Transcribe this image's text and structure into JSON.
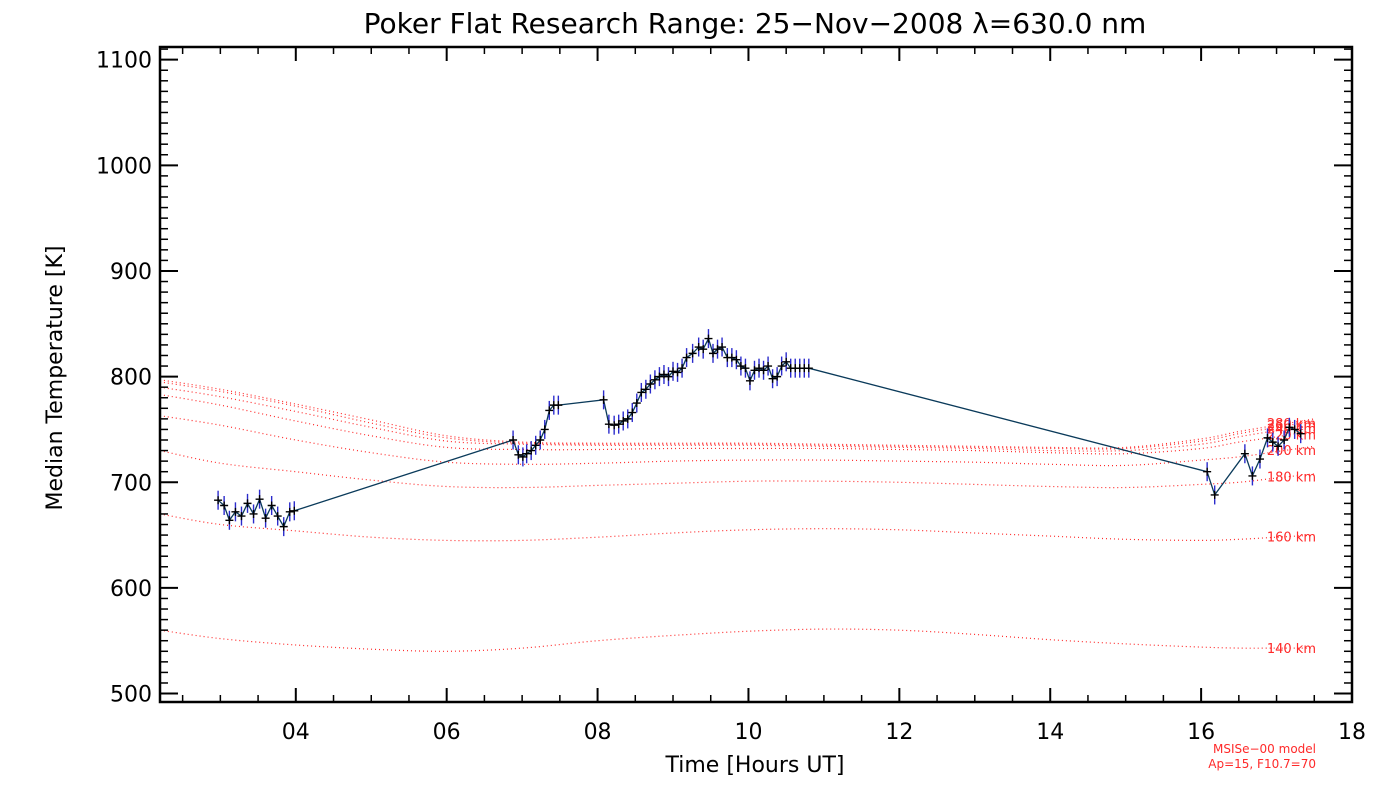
{
  "chart_data": {
    "type": "line",
    "title": "Poker Flat Research Range: 25−Nov−2008 λ=630.0 nm",
    "xlabel": "Time [Hours UT]",
    "ylabel": "Median Temperature [K]",
    "xlim": [
      2.2,
      18.0
    ],
    "ylim": [
      492,
      1112
    ],
    "xticks": [
      4,
      6,
      8,
      10,
      12,
      14,
      16,
      18
    ],
    "xtick_labels": [
      "04",
      "06",
      "08",
      "10",
      "12",
      "14",
      "16",
      "18"
    ],
    "yticks": [
      500,
      600,
      700,
      800,
      900,
      1000,
      1100
    ],
    "ytick_labels": [
      "500",
      "600",
      "700",
      "800",
      "900",
      "1000",
      "1100"
    ],
    "grid": false,
    "colors": {
      "measurement_line": "#0a3a5a",
      "errorbar": "#2b2bcc",
      "marker": "#000000",
      "model": "#ff2a2a",
      "axes": "#000000"
    },
    "measurements": {
      "x": [
        2.97,
        3.05,
        3.12,
        3.2,
        3.28,
        3.36,
        3.44,
        3.52,
        3.6,
        3.68,
        3.76,
        3.84,
        3.92,
        3.98,
        6.88,
        6.95,
        7.01,
        7.06,
        7.12,
        7.18,
        7.24,
        7.3,
        7.36,
        7.42,
        7.48,
        8.08,
        8.15,
        8.22,
        8.28,
        8.34,
        8.4,
        8.46,
        8.52,
        8.58,
        8.64,
        8.7,
        8.76,
        8.82,
        8.88,
        8.94,
        9.0,
        9.06,
        9.12,
        9.18,
        9.26,
        9.34,
        9.4,
        9.47,
        9.53,
        9.59,
        9.65,
        9.72,
        9.78,
        9.84,
        9.9,
        9.96,
        10.02,
        10.08,
        10.14,
        10.2,
        10.26,
        10.32,
        10.38,
        10.44,
        10.5,
        10.56,
        10.62,
        10.68,
        10.74,
        10.8,
        16.08,
        16.18,
        16.58,
        16.68,
        16.78,
        16.88,
        16.95,
        17.02,
        17.1,
        17.17,
        17.24,
        17.32
      ],
      "y": [
        683,
        678,
        664,
        672,
        668,
        680,
        670,
        684,
        666,
        678,
        668,
        658,
        672,
        673,
        740,
        726,
        724,
        727,
        730,
        735,
        740,
        750,
        768,
        773,
        773,
        778,
        755,
        754,
        755,
        758,
        760,
        766,
        775,
        785,
        788,
        793,
        797,
        800,
        802,
        800,
        805,
        804,
        808,
        818,
        822,
        828,
        826,
        836,
        822,
        826,
        828,
        818,
        818,
        816,
        810,
        808,
        796,
        806,
        808,
        806,
        810,
        798,
        800,
        810,
        814,
        808,
        808,
        808,
        808,
        808,
        710,
        688,
        727,
        706,
        722,
        742,
        738,
        734,
        740,
        752,
        750,
        746
      ],
      "err": 9
    },
    "model": {
      "name": "MSISe−00 model",
      "params": "Ap=15, F10.7=70",
      "x": [
        2.2,
        3,
        4,
        5,
        6,
        7,
        8,
        9,
        10,
        11,
        12,
        13,
        14,
        15,
        16,
        16.5,
        17,
        17.5
      ],
      "series": [
        {
          "name": "140 km",
          "values": [
            560,
            552,
            546,
            542,
            540,
            543,
            550,
            555,
            559,
            561,
            560,
            556,
            551,
            547,
            544,
            543,
            543,
            543
          ]
        },
        {
          "name": "160 km",
          "values": [
            670,
            660,
            654,
            648,
            645,
            645,
            648,
            652,
            655,
            656,
            655,
            652,
            649,
            646,
            645,
            646,
            648,
            650
          ]
        },
        {
          "name": "180 km",
          "values": [
            730,
            718,
            710,
            702,
            696,
            695,
            697,
            699,
            701,
            701,
            700,
            698,
            696,
            695,
            698,
            700,
            704,
            708
          ]
        },
        {
          "name": "200 km",
          "values": [
            763,
            754,
            740,
            728,
            719,
            717,
            718,
            720,
            721,
            721,
            720,
            719,
            717,
            716,
            721,
            724,
            729,
            734
          ]
        },
        {
          "name": "220 km",
          "values": [
            783,
            773,
            758,
            744,
            733,
            731,
            731,
            732,
            732,
            732,
            731,
            730,
            728,
            727,
            732,
            738,
            743,
            749
          ]
        },
        {
          "name": "240 km",
          "values": [
            790,
            781,
            767,
            752,
            739,
            736,
            735,
            735,
            735,
            734,
            733,
            732,
            730,
            730,
            736,
            743,
            749,
            755
          ]
        },
        {
          "name": "260 km",
          "values": [
            795,
            786,
            772,
            756,
            742,
            737,
            736,
            736,
            736,
            735,
            734,
            733,
            732,
            732,
            739,
            746,
            752,
            758
          ]
        },
        {
          "name": "280 km",
          "values": [
            797,
            788,
            774,
            759,
            744,
            738,
            737,
            737,
            737,
            736,
            735,
            734,
            733,
            733,
            741,
            748,
            754,
            760
          ]
        }
      ]
    }
  }
}
